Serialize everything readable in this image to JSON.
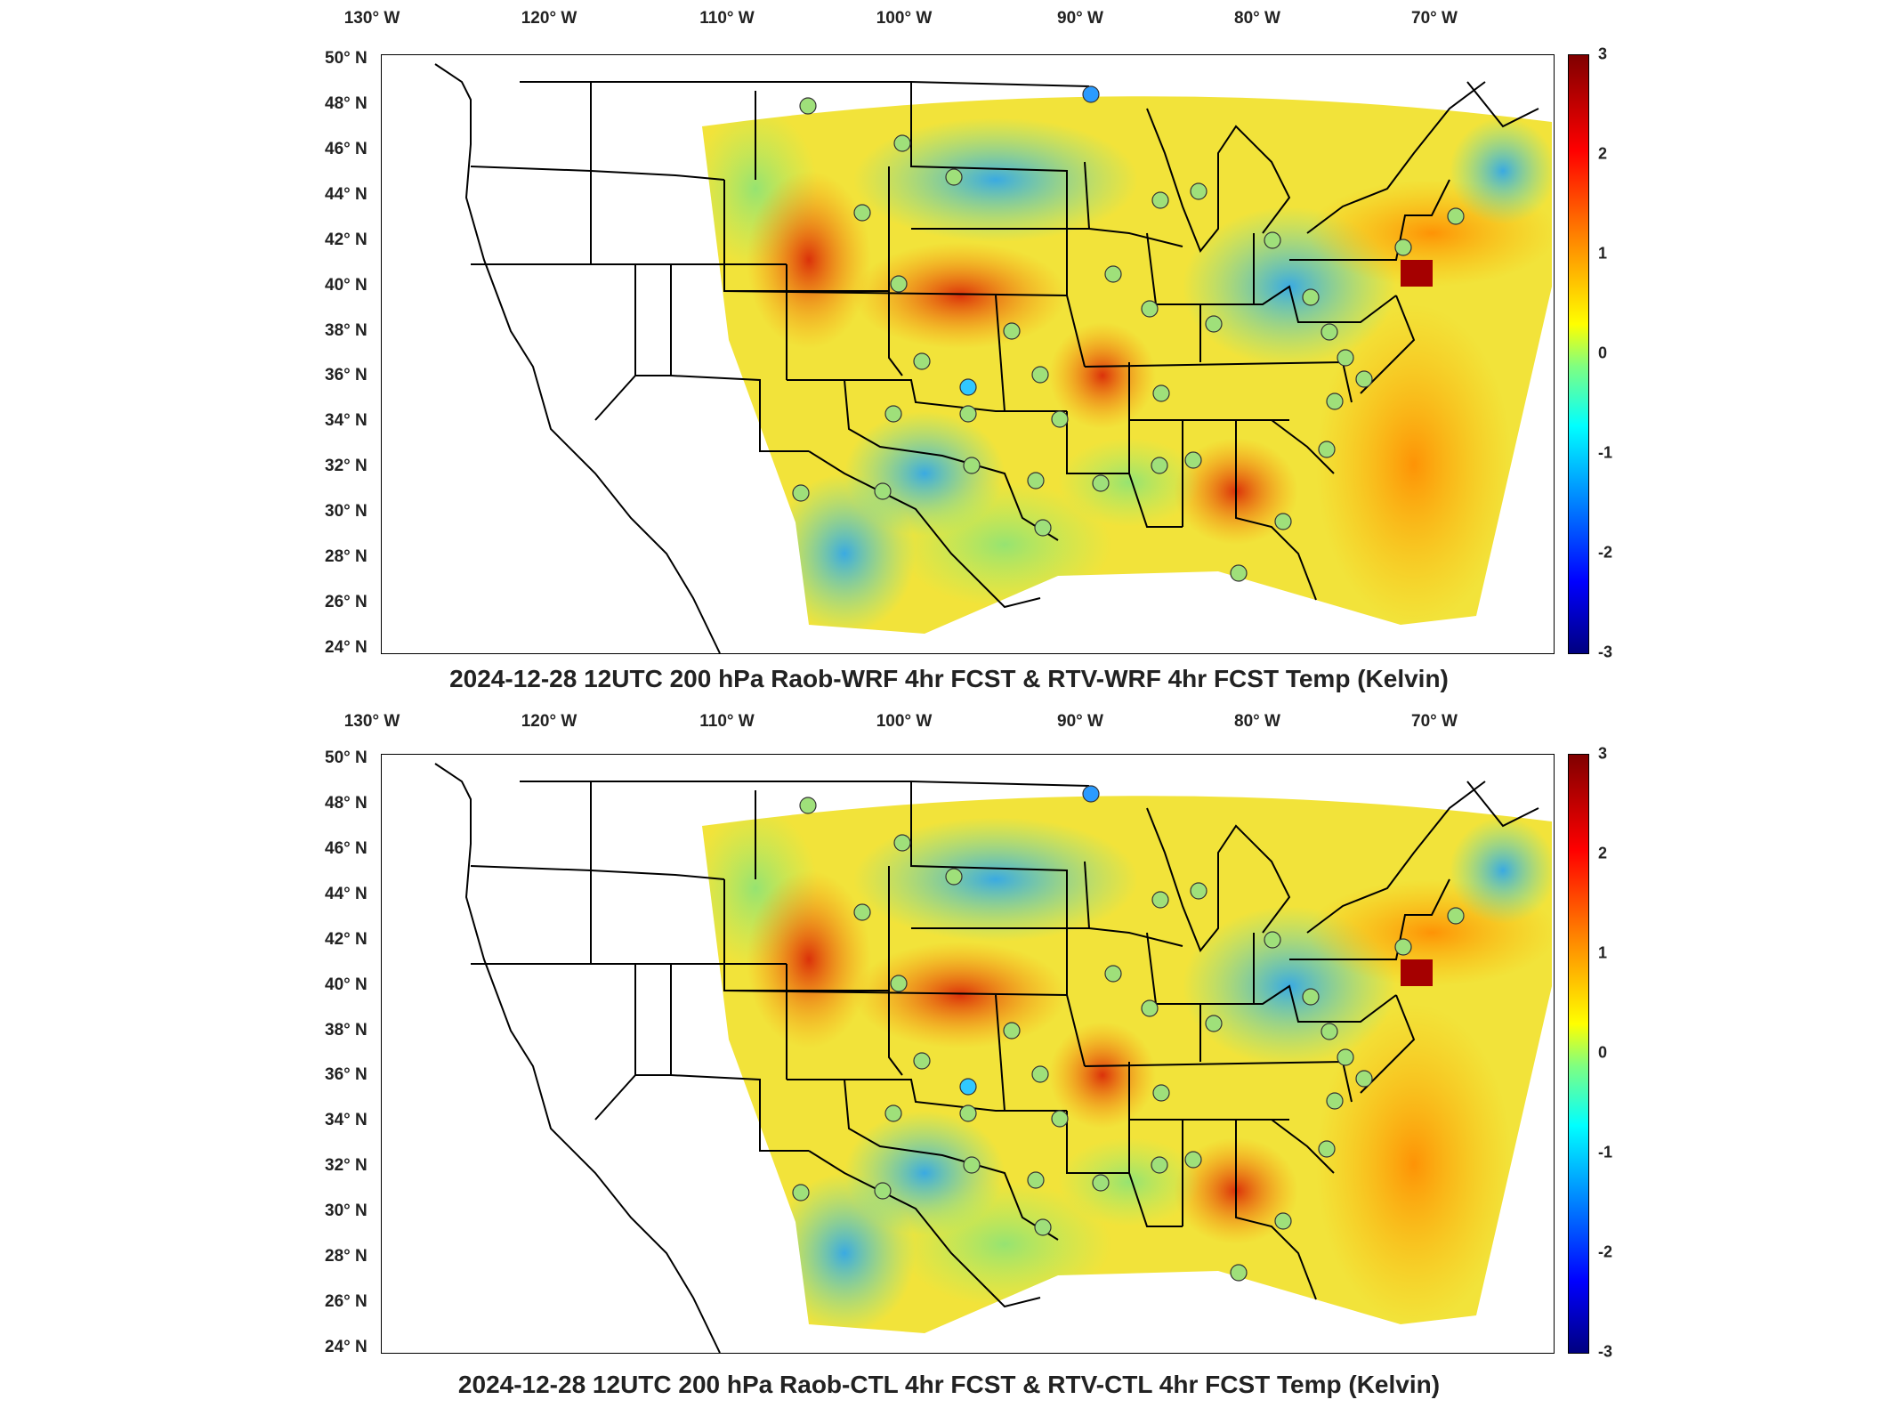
{
  "lon_labels": [
    "130° W",
    "120° W",
    "110° W",
    "100° W",
    "90° W",
    "80° W",
    "70° W"
  ],
  "lat_labels": [
    "50° N",
    "48° N",
    "46° N",
    "44° N",
    "42° N",
    "40° N",
    "38° N",
    "36° N",
    "34° N",
    "32° N",
    "30° N",
    "28° N",
    "26° N",
    "24° N"
  ],
  "colorbar": {
    "ticks": [
      "3",
      "2",
      "1",
      "0",
      "-1",
      "-2",
      "-3"
    ],
    "colors": [
      "#800000",
      "#ff0000",
      "#ff8000",
      "#ffff00",
      "#80ff80",
      "#00ffff",
      "#0080ff",
      "#0000ff",
      "#000080"
    ]
  },
  "panels": [
    {
      "title": "2024-12-28 12UTC 200 hPa Raob-WRF 4hr FCST & RTV-WRF 4hr FCST Temp (Kelvin)"
    },
    {
      "title": "2024-12-28 12UTC 200 hPa Raob-CTL 4hr FCST & RTV-CTL 4hr FCST Temp (Kelvin)"
    }
  ]
}
